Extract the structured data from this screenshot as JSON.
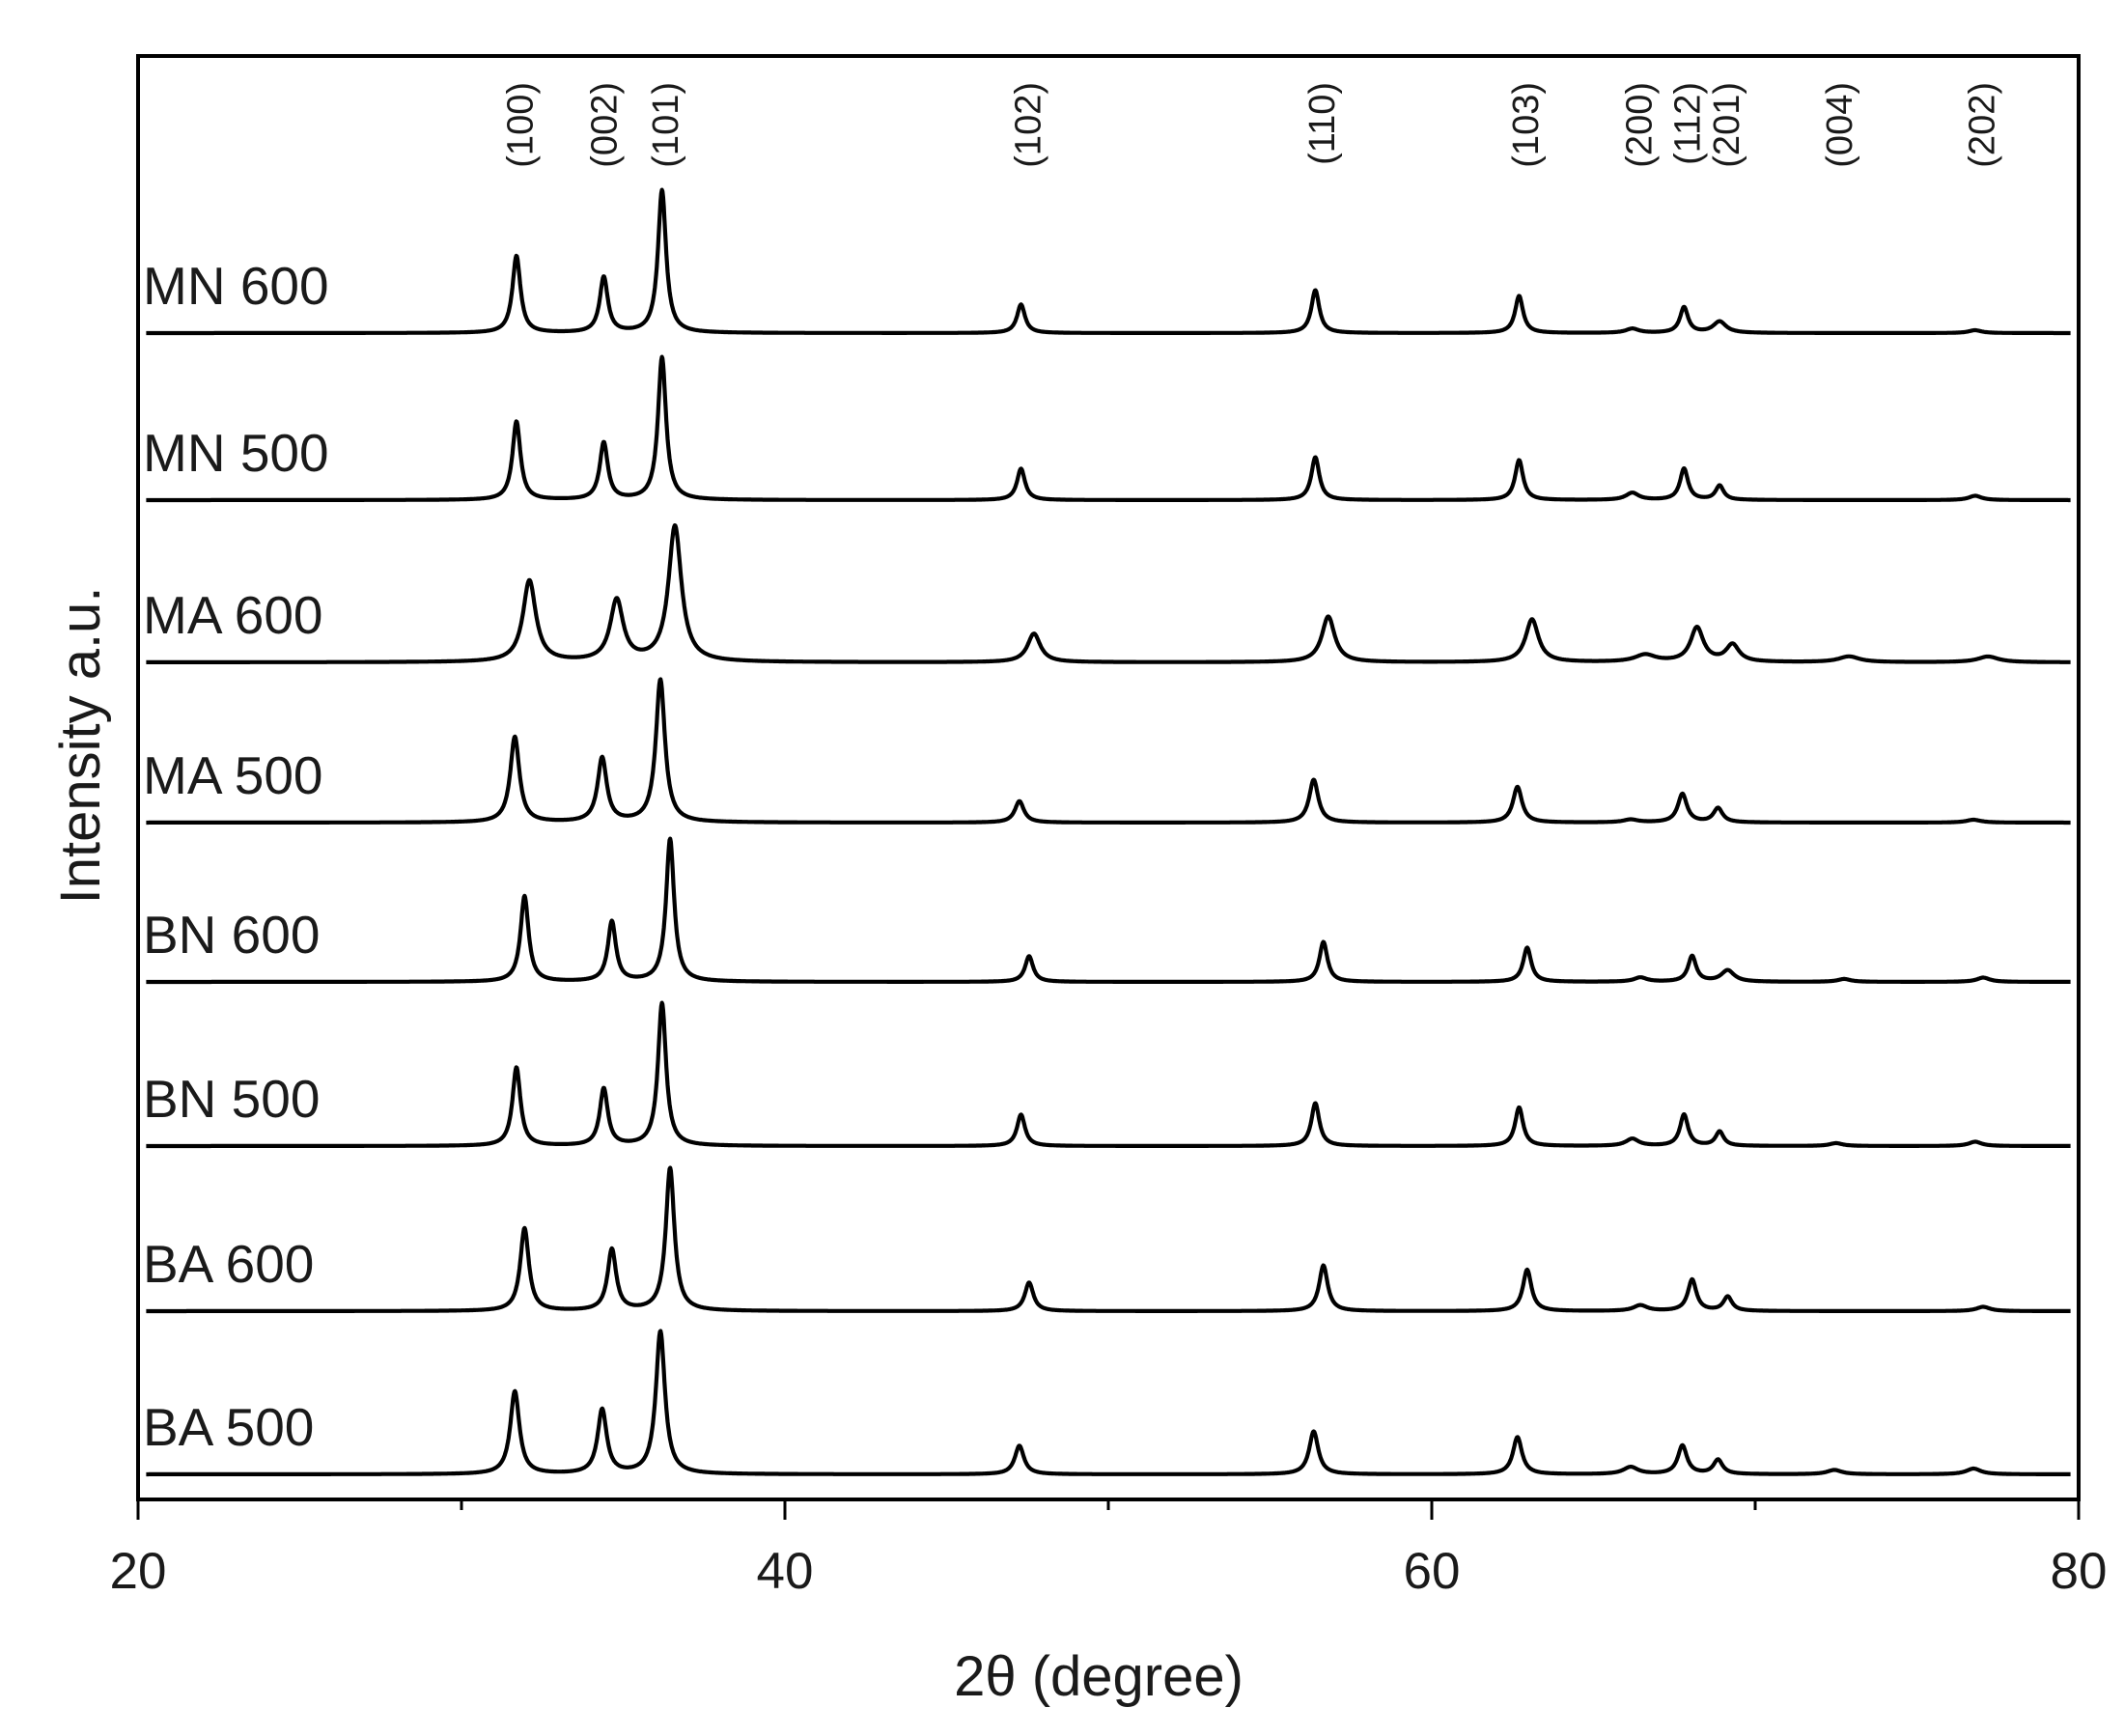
{
  "chart_data": {
    "type": "line",
    "title": "",
    "xlabel": "2θ (degree)",
    "ylabel": "Intensity a.u.",
    "xlim": [
      20,
      80
    ],
    "x_ticks": [
      20,
      40,
      60,
      80
    ],
    "x_minor_ticks": [
      30,
      50,
      70
    ],
    "grid": false,
    "layout": "stacked-offset",
    "peak_labels": [
      {
        "label": "(100)",
        "x": 31.8
      },
      {
        "label": "(002)",
        "x": 34.4
      },
      {
        "label": "(101)",
        "x": 36.3
      },
      {
        "label": "(102)",
        "x": 47.5
      },
      {
        "label": "(110)",
        "x": 56.6
      },
      {
        "label": "(103)",
        "x": 62.9
      },
      {
        "label": "(200)",
        "x": 66.4
      },
      {
        "label": "(112)",
        "x": 67.9
      },
      {
        "label": "(201)",
        "x": 69.1
      },
      {
        "label": "(004)",
        "x": 72.6
      },
      {
        "label": "(202)",
        "x": 77.0
      }
    ],
    "series": [
      {
        "name": "MN 600",
        "shift": 0.0,
        "width": 0.15,
        "peaks": [
          [
            31.7,
            0.54
          ],
          [
            34.4,
            0.39
          ],
          [
            36.2,
            1.0
          ],
          [
            47.3,
            0.2
          ],
          [
            56.4,
            0.3
          ],
          [
            62.7,
            0.26
          ],
          [
            66.2,
            0.03
          ],
          [
            67.8,
            0.18
          ],
          [
            68.9,
            0.08
          ],
          [
            72.5,
            0.0
          ],
          [
            76.8,
            0.02
          ]
        ]
      },
      {
        "name": "MN 500",
        "shift": 0.0,
        "width": 0.15,
        "peaks": [
          [
            31.7,
            0.55
          ],
          [
            34.4,
            0.4
          ],
          [
            36.2,
            1.0
          ],
          [
            47.3,
            0.22
          ],
          [
            56.4,
            0.3
          ],
          [
            62.7,
            0.28
          ],
          [
            66.2,
            0.05
          ],
          [
            67.8,
            0.22
          ],
          [
            68.9,
            0.1
          ],
          [
            72.5,
            0.0
          ],
          [
            76.8,
            0.03
          ]
        ]
      },
      {
        "name": "MA 600",
        "shift": 0.4,
        "width": 0.24,
        "peaks": [
          [
            31.7,
            0.57
          ],
          [
            34.4,
            0.43
          ],
          [
            36.2,
            0.95
          ],
          [
            47.3,
            0.2
          ],
          [
            56.4,
            0.32
          ],
          [
            62.7,
            0.3
          ],
          [
            66.2,
            0.05
          ],
          [
            67.8,
            0.24
          ],
          [
            68.9,
            0.12
          ],
          [
            72.5,
            0.04
          ],
          [
            76.8,
            0.04
          ]
        ]
      },
      {
        "name": "MA 500",
        "shift": -0.05,
        "width": 0.17,
        "peaks": [
          [
            31.7,
            0.6
          ],
          [
            34.4,
            0.45
          ],
          [
            36.2,
            1.0
          ],
          [
            47.3,
            0.15
          ],
          [
            56.4,
            0.3
          ],
          [
            62.7,
            0.25
          ],
          [
            66.2,
            0.02
          ],
          [
            67.8,
            0.2
          ],
          [
            68.9,
            0.1
          ],
          [
            72.5,
            0.0
          ],
          [
            76.8,
            0.02
          ]
        ]
      },
      {
        "name": "BN 600",
        "shift": 0.25,
        "width": 0.15,
        "peaks": [
          [
            31.7,
            0.6
          ],
          [
            34.4,
            0.42
          ],
          [
            36.2,
            1.0
          ],
          [
            47.3,
            0.18
          ],
          [
            56.4,
            0.28
          ],
          [
            62.7,
            0.24
          ],
          [
            66.2,
            0.03
          ],
          [
            67.8,
            0.18
          ],
          [
            68.9,
            0.08
          ],
          [
            72.5,
            0.02
          ],
          [
            76.8,
            0.03
          ]
        ]
      },
      {
        "name": "BN 500",
        "shift": 0.0,
        "width": 0.15,
        "peaks": [
          [
            31.7,
            0.55
          ],
          [
            34.4,
            0.4
          ],
          [
            36.2,
            1.0
          ],
          [
            47.3,
            0.22
          ],
          [
            56.4,
            0.3
          ],
          [
            62.7,
            0.27
          ],
          [
            66.2,
            0.05
          ],
          [
            67.8,
            0.22
          ],
          [
            68.9,
            0.1
          ],
          [
            72.5,
            0.02
          ],
          [
            76.8,
            0.03
          ]
        ]
      },
      {
        "name": "BA 600",
        "shift": 0.25,
        "width": 0.16,
        "peaks": [
          [
            31.7,
            0.58
          ],
          [
            34.4,
            0.43
          ],
          [
            36.2,
            1.0
          ],
          [
            47.3,
            0.2
          ],
          [
            56.4,
            0.32
          ],
          [
            62.7,
            0.29
          ],
          [
            66.2,
            0.04
          ],
          [
            67.8,
            0.22
          ],
          [
            68.9,
            0.1
          ],
          [
            72.5,
            0.0
          ],
          [
            76.8,
            0.03
          ]
        ]
      },
      {
        "name": "BA 500",
        "shift": -0.05,
        "width": 0.17,
        "peaks": [
          [
            31.7,
            0.58
          ],
          [
            34.4,
            0.45
          ],
          [
            36.2,
            1.0
          ],
          [
            47.3,
            0.2
          ],
          [
            56.4,
            0.3
          ],
          [
            62.7,
            0.26
          ],
          [
            66.2,
            0.05
          ],
          [
            67.8,
            0.2
          ],
          [
            68.9,
            0.1
          ],
          [
            72.5,
            0.03
          ],
          [
            76.8,
            0.04
          ]
        ]
      }
    ]
  }
}
